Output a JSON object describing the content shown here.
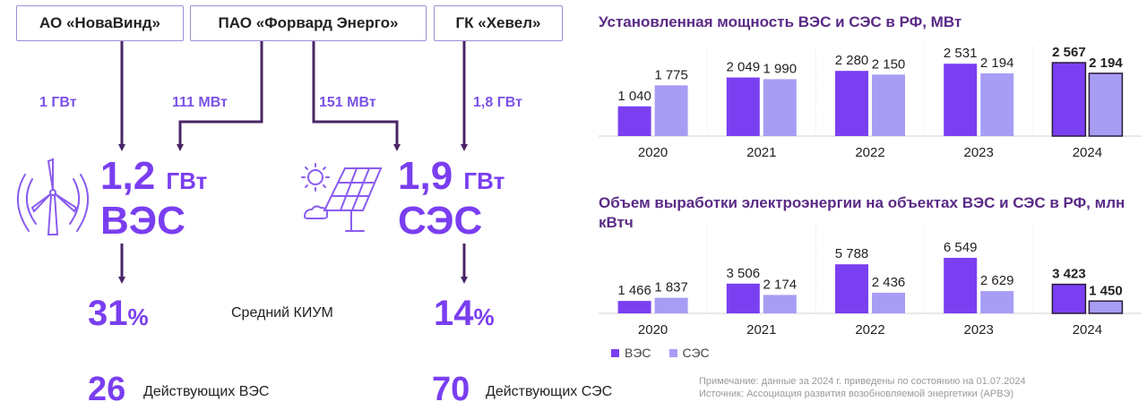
{
  "companies": [
    {
      "name": "АО «НоваВинд»",
      "flow": "1 ГВт"
    },
    {
      "name": "ПАО «Форвард Энерго»",
      "flow_wind": "111 МВт",
      "flow_solar": "151 МВт"
    },
    {
      "name": "ГК «Хевел»",
      "flow": "1,8 ГВт"
    }
  ],
  "wind": {
    "capacity_value": "1,2",
    "capacity_unit": "ГВт",
    "type": "ВЭС",
    "kium_value": "31",
    "kium_unit": "%",
    "count": "26",
    "count_label": "Действующих ВЭС"
  },
  "solar": {
    "capacity_value": "1,9",
    "capacity_unit": "ГВт",
    "type": "СЭС",
    "kium_value": "14",
    "kium_unit": "%",
    "count": "70",
    "count_label": "Действующих СЭС"
  },
  "kium_label": "Средний КИУМ",
  "colors": {
    "accent": "#7a3ef0",
    "wind_bar": "#7b3ff2",
    "solar_bar": "#a79df4",
    "title": "#5a2a86"
  },
  "icons": [
    "wind-turbine-icon",
    "solar-panel-icon"
  ],
  "legend": {
    "wind": "ВЭС",
    "solar": "СЭС"
  },
  "note": {
    "line1": "Примечание: данные за 2024 г. приведены по состоянию на 01.07.2024",
    "line2": "Источник: Ассоциация развития возобновляемой энергетики (АРВЭ)"
  },
  "chart_data": [
    {
      "type": "bar",
      "title": "Установленная мощность ВЭС и СЭС в РФ, МВт",
      "categories": [
        "2020",
        "2021",
        "2022",
        "2023",
        "2024"
      ],
      "series": [
        {
          "name": "ВЭС",
          "values": [
            1040,
            2049,
            2280,
            2531,
            2567
          ],
          "labels": [
            "1 040",
            "2 049",
            "2 280",
            "2 531",
            "2 567"
          ]
        },
        {
          "name": "СЭС",
          "values": [
            1775,
            1990,
            2150,
            2194,
            2194
          ],
          "labels": [
            "1 775",
            "1 990",
            "2 150",
            "2 194",
            "2 194"
          ]
        }
      ],
      "highlight_category": "2024"
    },
    {
      "type": "bar",
      "title": "Объем выработки электроэнергии на объектах ВЭС и СЭС в РФ, млн кВтч",
      "categories": [
        "2020",
        "2021",
        "2022",
        "2023",
        "2024"
      ],
      "series": [
        {
          "name": "ВЭС",
          "values": [
            1466,
            3506,
            5788,
            6549,
            3423
          ],
          "labels": [
            "1 466",
            "3 506",
            "5 788",
            "6 549",
            "3 423"
          ]
        },
        {
          "name": "СЭС",
          "values": [
            1837,
            2174,
            2436,
            2629,
            1450
          ],
          "labels": [
            "1 837",
            "2 174",
            "2 436",
            "2 629",
            "1 450"
          ]
        }
      ],
      "highlight_category": "2024"
    }
  ]
}
